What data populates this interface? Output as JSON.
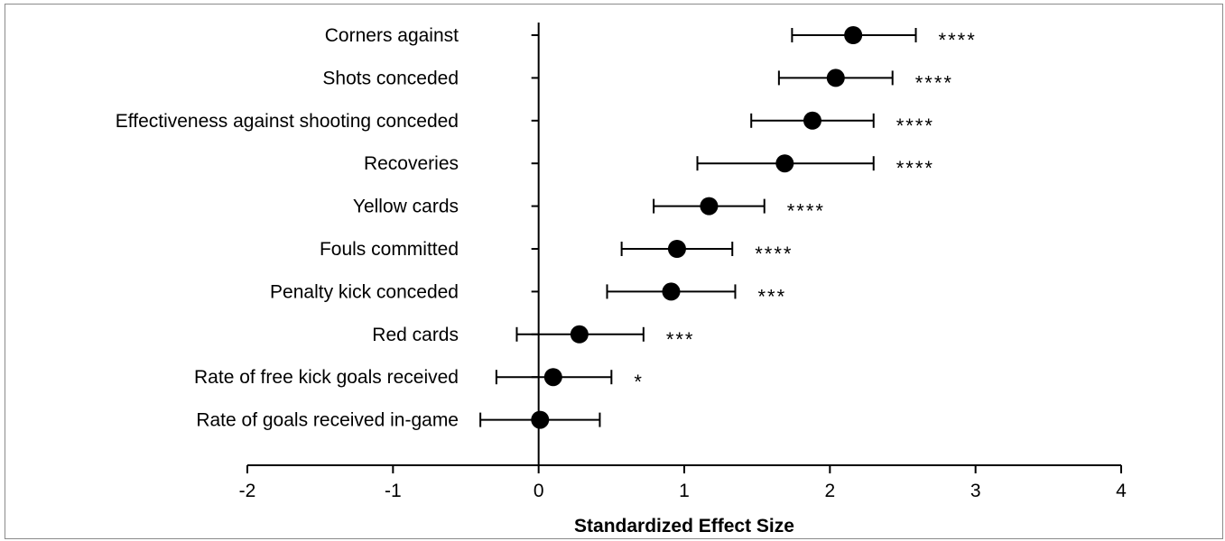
{
  "chart_data": {
    "type": "scatter",
    "subtype": "forest-plot",
    "title": "",
    "xlabel": "Standardized Effect Size",
    "ylabel": "",
    "xlim": [
      -2,
      4
    ],
    "x_ticks": [
      "-2",
      "-1",
      "0",
      "1",
      "2",
      "3",
      "4"
    ],
    "grid": false,
    "legend": "none",
    "marker_color": "#000000",
    "rows": [
      {
        "label": "Corners against",
        "estimate": 2.16,
        "ci_low": 1.74,
        "ci_high": 2.59,
        "significance": "****"
      },
      {
        "label": "Shots conceded",
        "estimate": 2.04,
        "ci_low": 1.65,
        "ci_high": 2.43,
        "significance": "****"
      },
      {
        "label": "Effectiveness against shooting conceded",
        "estimate": 1.88,
        "ci_low": 1.46,
        "ci_high": 2.3,
        "significance": "****"
      },
      {
        "label": "Recoveries",
        "estimate": 1.69,
        "ci_low": 1.09,
        "ci_high": 2.3,
        "significance": "****"
      },
      {
        "label": "Yellow cards",
        "estimate": 1.17,
        "ci_low": 0.79,
        "ci_high": 1.55,
        "significance": "****"
      },
      {
        "label": "Fouls committed",
        "estimate": 0.95,
        "ci_low": 0.57,
        "ci_high": 1.33,
        "significance": "****"
      },
      {
        "label": "Penalty kick conceded",
        "estimate": 0.91,
        "ci_low": 0.47,
        "ci_high": 1.35,
        "significance": "***"
      },
      {
        "label": "Red cards",
        "estimate": 0.28,
        "ci_low": -0.15,
        "ci_high": 0.72,
        "significance": "***"
      },
      {
        "label": "Rate of free kick goals received",
        "estimate": 0.1,
        "ci_low": -0.29,
        "ci_high": 0.5,
        "significance": "*"
      },
      {
        "label": "Rate of goals received in-game",
        "estimate": 0.01,
        "ci_low": -0.4,
        "ci_high": 0.42,
        "significance": ""
      }
    ]
  }
}
